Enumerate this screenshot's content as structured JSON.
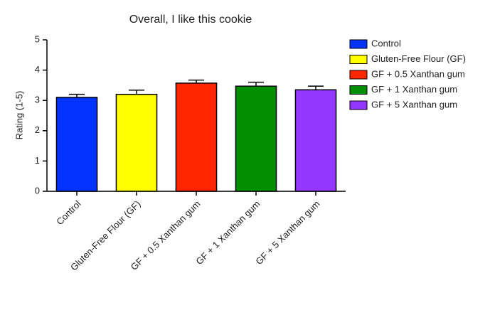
{
  "chart_data": {
    "type": "bar",
    "title": "Overall, I like this cookie",
    "y_label": "Rating (1-5)",
    "categories": [
      "Control",
      "Gluten-Free Flour (GF)",
      "GF + 0.5 Xanthan gum",
      "GF + 1 Xanthan gum",
      "GF + 5 Xanthan gum"
    ],
    "values": [
      3.1,
      3.2,
      3.57,
      3.47,
      3.35
    ],
    "errors": [
      0.1,
      0.14,
      0.1,
      0.13,
      0.12
    ],
    "colors": [
      "#0433ff",
      "#ffff00",
      "#ff2600",
      "#008f00",
      "#9437ff"
    ],
    "ylim": [
      0,
      5
    ],
    "yticks": [
      0,
      1,
      2,
      3,
      4,
      5
    ],
    "grid": false,
    "legend": "right"
  }
}
